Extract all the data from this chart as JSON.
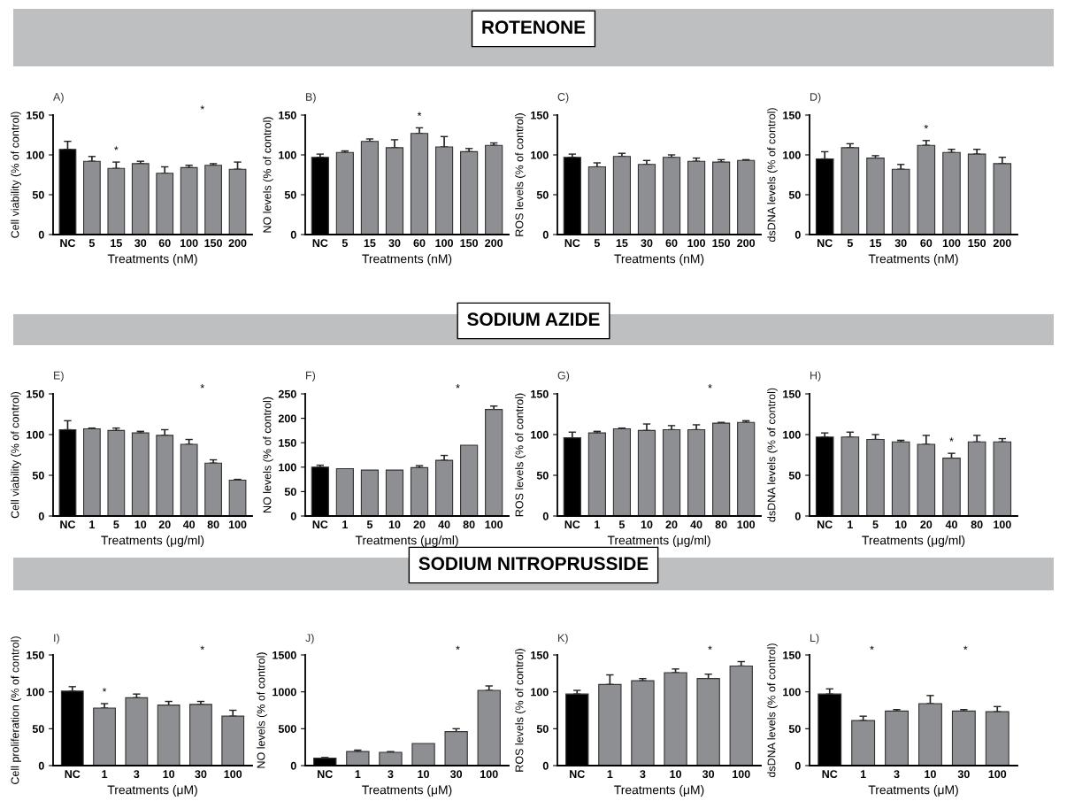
{
  "chart_data": [
    {
      "type": "bar",
      "title": "A)",
      "xlabel": "Treatments (nM)",
      "ylabel": "Cell viability (% of control)",
      "categories": [
        "NC",
        "5",
        "15",
        "30",
        "60",
        "100",
        "150",
        "200"
      ],
      "values": [
        107,
        92,
        83,
        89,
        77,
        84,
        87,
        82
      ],
      "errors": [
        10,
        6,
        8,
        3,
        8,
        3,
        2,
        9
      ],
      "colors": [
        "#000000",
        "#8e8f93",
        "#8e8f93",
        "#8e8f93",
        "#8e8f93",
        "#8e8f93",
        "#8e8f93",
        "#8e8f93"
      ],
      "ylim": [
        0,
        150
      ],
      "yticks": [
        0,
        50,
        100,
        150
      ],
      "annotations": [
        "ROTENONE",
        {
          "text": "*",
          "x": "15",
          "y": 83
        },
        "*"
      ]
    },
    {
      "type": "bar",
      "title": "B)",
      "xlabel": "Treatments (nM)",
      "ylabel": "NO levels (% of control)",
      "categories": [
        "NC",
        "5",
        "15",
        "30",
        "60",
        "100",
        "150",
        "200"
      ],
      "values": [
        97,
        103,
        117,
        109,
        127,
        110,
        104,
        112
      ],
      "errors": [
        4,
        2,
        3,
        10,
        7,
        13,
        4,
        3
      ],
      "colors": [
        "#000000",
        "#8e8f93",
        "#8e8f93",
        "#8e8f93",
        "#8e8f93",
        "#8e8f93",
        "#8e8f93",
        "#8e8f93"
      ],
      "ylim": [
        0,
        150
      ],
      "yticks": [
        0,
        50,
        100,
        150
      ],
      "annotations": [
        {
          "text": "*",
          "x": "60",
          "y": 127
        }
      ]
    },
    {
      "type": "bar",
      "title": "C)",
      "xlabel": "Treatments (nM)",
      "ylabel": "ROS levels (% of control)",
      "categories": [
        "NC",
        "5",
        "15",
        "30",
        "60",
        "100",
        "150",
        "200"
      ],
      "values": [
        97,
        85,
        98,
        88,
        97,
        92,
        91,
        93
      ],
      "errors": [
        4,
        5,
        4,
        5,
        3,
        4,
        3,
        1
      ],
      "colors": [
        "#000000",
        "#8e8f93",
        "#8e8f93",
        "#8e8f93",
        "#8e8f93",
        "#8e8f93",
        "#8e8f93",
        "#8e8f93"
      ],
      "ylim": [
        0,
        150
      ],
      "yticks": [
        0,
        50,
        100,
        150
      ]
    },
    {
      "type": "bar",
      "title": "D)",
      "xlabel": "Treatments (nM)",
      "ylabel": "dsDNA levels (% of control)",
      "categories": [
        "NC",
        "5",
        "15",
        "30",
        "60",
        "100",
        "150",
        "200"
      ],
      "values": [
        95,
        109,
        96,
        82,
        112,
        103,
        101,
        89
      ],
      "errors": [
        9,
        5,
        3,
        6,
        6,
        4,
        6,
        8
      ],
      "colors": [
        "#000000",
        "#8e8f93",
        "#8e8f93",
        "#8e8f93",
        "#8e8f93",
        "#8e8f93",
        "#8e8f93",
        "#8e8f93"
      ],
      "ylim": [
        0,
        150
      ],
      "yticks": [
        0,
        50,
        100,
        150
      ],
      "annotations": [
        {
          "text": "*",
          "x": "60",
          "y": 112
        }
      ]
    },
    {
      "type": "bar",
      "title": "E)",
      "xlabel": "Treatments (μg/ml)",
      "ylabel": "Cell viability (% of control)",
      "categories": [
        "NC",
        "1",
        "5",
        "10",
        "20",
        "40",
        "80",
        "100"
      ],
      "values": [
        106,
        107,
        105,
        102,
        99,
        88,
        65,
        44
      ],
      "errors": [
        11,
        1,
        3,
        2,
        7,
        6,
        4,
        1
      ],
      "colors": [
        "#000000",
        "#8e8f93",
        "#8e8f93",
        "#8e8f93",
        "#8e8f93",
        "#8e8f93",
        "#8e8f93",
        "#8e8f93"
      ],
      "ylim": [
        0,
        150
      ],
      "yticks": [
        0,
        50,
        100,
        150
      ],
      "annotations": [
        "SODIUM AZIDE",
        "*"
      ]
    },
    {
      "type": "bar",
      "title": "F)",
      "xlabel": "Treatments (μg/ml)",
      "ylabel": "NO levels (% of control)",
      "categories": [
        "NC",
        "1",
        "5",
        "10",
        "20",
        "40",
        "80",
        "100"
      ],
      "values": [
        100,
        97,
        94,
        94,
        99,
        114,
        145,
        218
      ],
      "errors": [
        4,
        null,
        null,
        null,
        4,
        10,
        null,
        7
      ],
      "colors": [
        "#000000",
        "#8e8f93",
        "#8e8f93",
        "#8e8f93",
        "#8e8f93",
        "#8e8f93",
        "#8e8f93",
        "#8e8f93"
      ],
      "ylim": [
        0,
        250
      ],
      "yticks": [
        0,
        50,
        100,
        150,
        200,
        250
      ],
      "annotations": [
        "*"
      ]
    },
    {
      "type": "bar",
      "title": "G)",
      "xlabel": "Treatments (μg/ml)",
      "ylabel": "ROS levels (% of control)",
      "categories": [
        "NC",
        "1",
        "5",
        "10",
        "20",
        "40",
        "80",
        "100"
      ],
      "values": [
        96,
        102,
        107,
        105,
        106,
        106,
        114,
        115
      ],
      "errors": [
        7,
        2,
        1,
        8,
        5,
        6,
        1,
        2
      ],
      "colors": [
        "#000000",
        "#8e8f93",
        "#8e8f93",
        "#8e8f93",
        "#8e8f93",
        "#8e8f93",
        "#8e8f93",
        "#8e8f93"
      ],
      "ylim": [
        0,
        150
      ],
      "yticks": [
        0,
        50,
        100,
        150
      ],
      "annotations": [
        "*"
      ]
    },
    {
      "type": "bar",
      "title": "H)",
      "xlabel": "Treatments (μg/ml)",
      "ylabel": "dsDNA levels (% of control)",
      "categories": [
        "NC",
        "1",
        "5",
        "10",
        "20",
        "40",
        "80",
        "100"
      ],
      "values": [
        97,
        97,
        94,
        91,
        88,
        71,
        91,
        91
      ],
      "errors": [
        5,
        6,
        6,
        2,
        11,
        6,
        8,
        4
      ],
      "colors": [
        "#000000",
        "#8e8f93",
        "#8e8f93",
        "#8e8f93",
        "#8e8f93",
        "#8e8f93",
        "#8e8f93",
        "#8e8f93"
      ],
      "ylim": [
        0,
        150
      ],
      "yticks": [
        0,
        50,
        100,
        150
      ],
      "annotations": [
        {
          "text": "*",
          "x": "40",
          "y": 71
        }
      ]
    },
    {
      "type": "bar",
      "title": "I)",
      "xlabel": "Treatments (μM)",
      "ylabel": "Cell proliferation (% of control)",
      "categories": [
        "NC",
        "1",
        "3",
        "10",
        "30",
        "100"
      ],
      "values": [
        101,
        78,
        92,
        82,
        83,
        67
      ],
      "errors": [
        6,
        6,
        5,
        5,
        4,
        8
      ],
      "colors": [
        "#000000",
        "#8e8f93",
        "#8e8f93",
        "#8e8f93",
        "#8e8f93",
        "#8e8f93"
      ],
      "ylim": [
        0,
        150
      ],
      "yticks": [
        0,
        50,
        100,
        150
      ],
      "annotations": [
        "SODIUM NITROPRUSSIDE",
        {
          "text": "*",
          "x": "1",
          "y": 78
        },
        "*"
      ]
    },
    {
      "type": "bar",
      "title": "J)",
      "xlabel": "Treatments (μM)",
      "ylabel": "NO levels (% of control)",
      "categories": [
        "NC",
        "1",
        "3",
        "10",
        "30",
        "100"
      ],
      "values": [
        100,
        190,
        180,
        300,
        460,
        1020
      ],
      "errors": [
        10,
        20,
        10,
        null,
        40,
        60
      ],
      "colors": [
        "#000000",
        "#8e8f93",
        "#8e8f93",
        "#8e8f93",
        "#8e8f93",
        "#8e8f93"
      ],
      "ylim": [
        0,
        1500
      ],
      "yticks": [
        0,
        500,
        1000,
        1500
      ],
      "annotations": [
        "*"
      ]
    },
    {
      "type": "bar",
      "title": "K)",
      "xlabel": "Treatments (μM)",
      "ylabel": "ROS levels (% of control)",
      "categories": [
        "NC",
        "1",
        "3",
        "10",
        "30",
        "100"
      ],
      "values": [
        97,
        110,
        115,
        126,
        118,
        135
      ],
      "errors": [
        5,
        13,
        3,
        5,
        6,
        6
      ],
      "colors": [
        "#000000",
        "#8e8f93",
        "#8e8f93",
        "#8e8f93",
        "#8e8f93",
        "#8e8f93"
      ],
      "ylim": [
        0,
        150
      ],
      "yticks": [
        0,
        50,
        100,
        150
      ],
      "annotations": [
        "*"
      ]
    },
    {
      "type": "bar",
      "title": "L)",
      "xlabel": "Treatments (μM)",
      "ylabel": "dsDNA levels (% of control)",
      "categories": [
        "NC",
        "1",
        "3",
        "10",
        "30",
        "100"
      ],
      "values": [
        97,
        61,
        74,
        84,
        74,
        73
      ],
      "errors": [
        7,
        6,
        2,
        11,
        2,
        7
      ],
      "colors": [
        "#000000",
        "#8e8f93",
        "#8e8f93",
        "#8e8f93",
        "#8e8f93",
        "#8e8f93"
      ],
      "ylim": [
        0,
        150
      ],
      "yticks": [
        0,
        50,
        100,
        150
      ],
      "annotations": [
        "*",
        "*"
      ]
    }
  ]
}
